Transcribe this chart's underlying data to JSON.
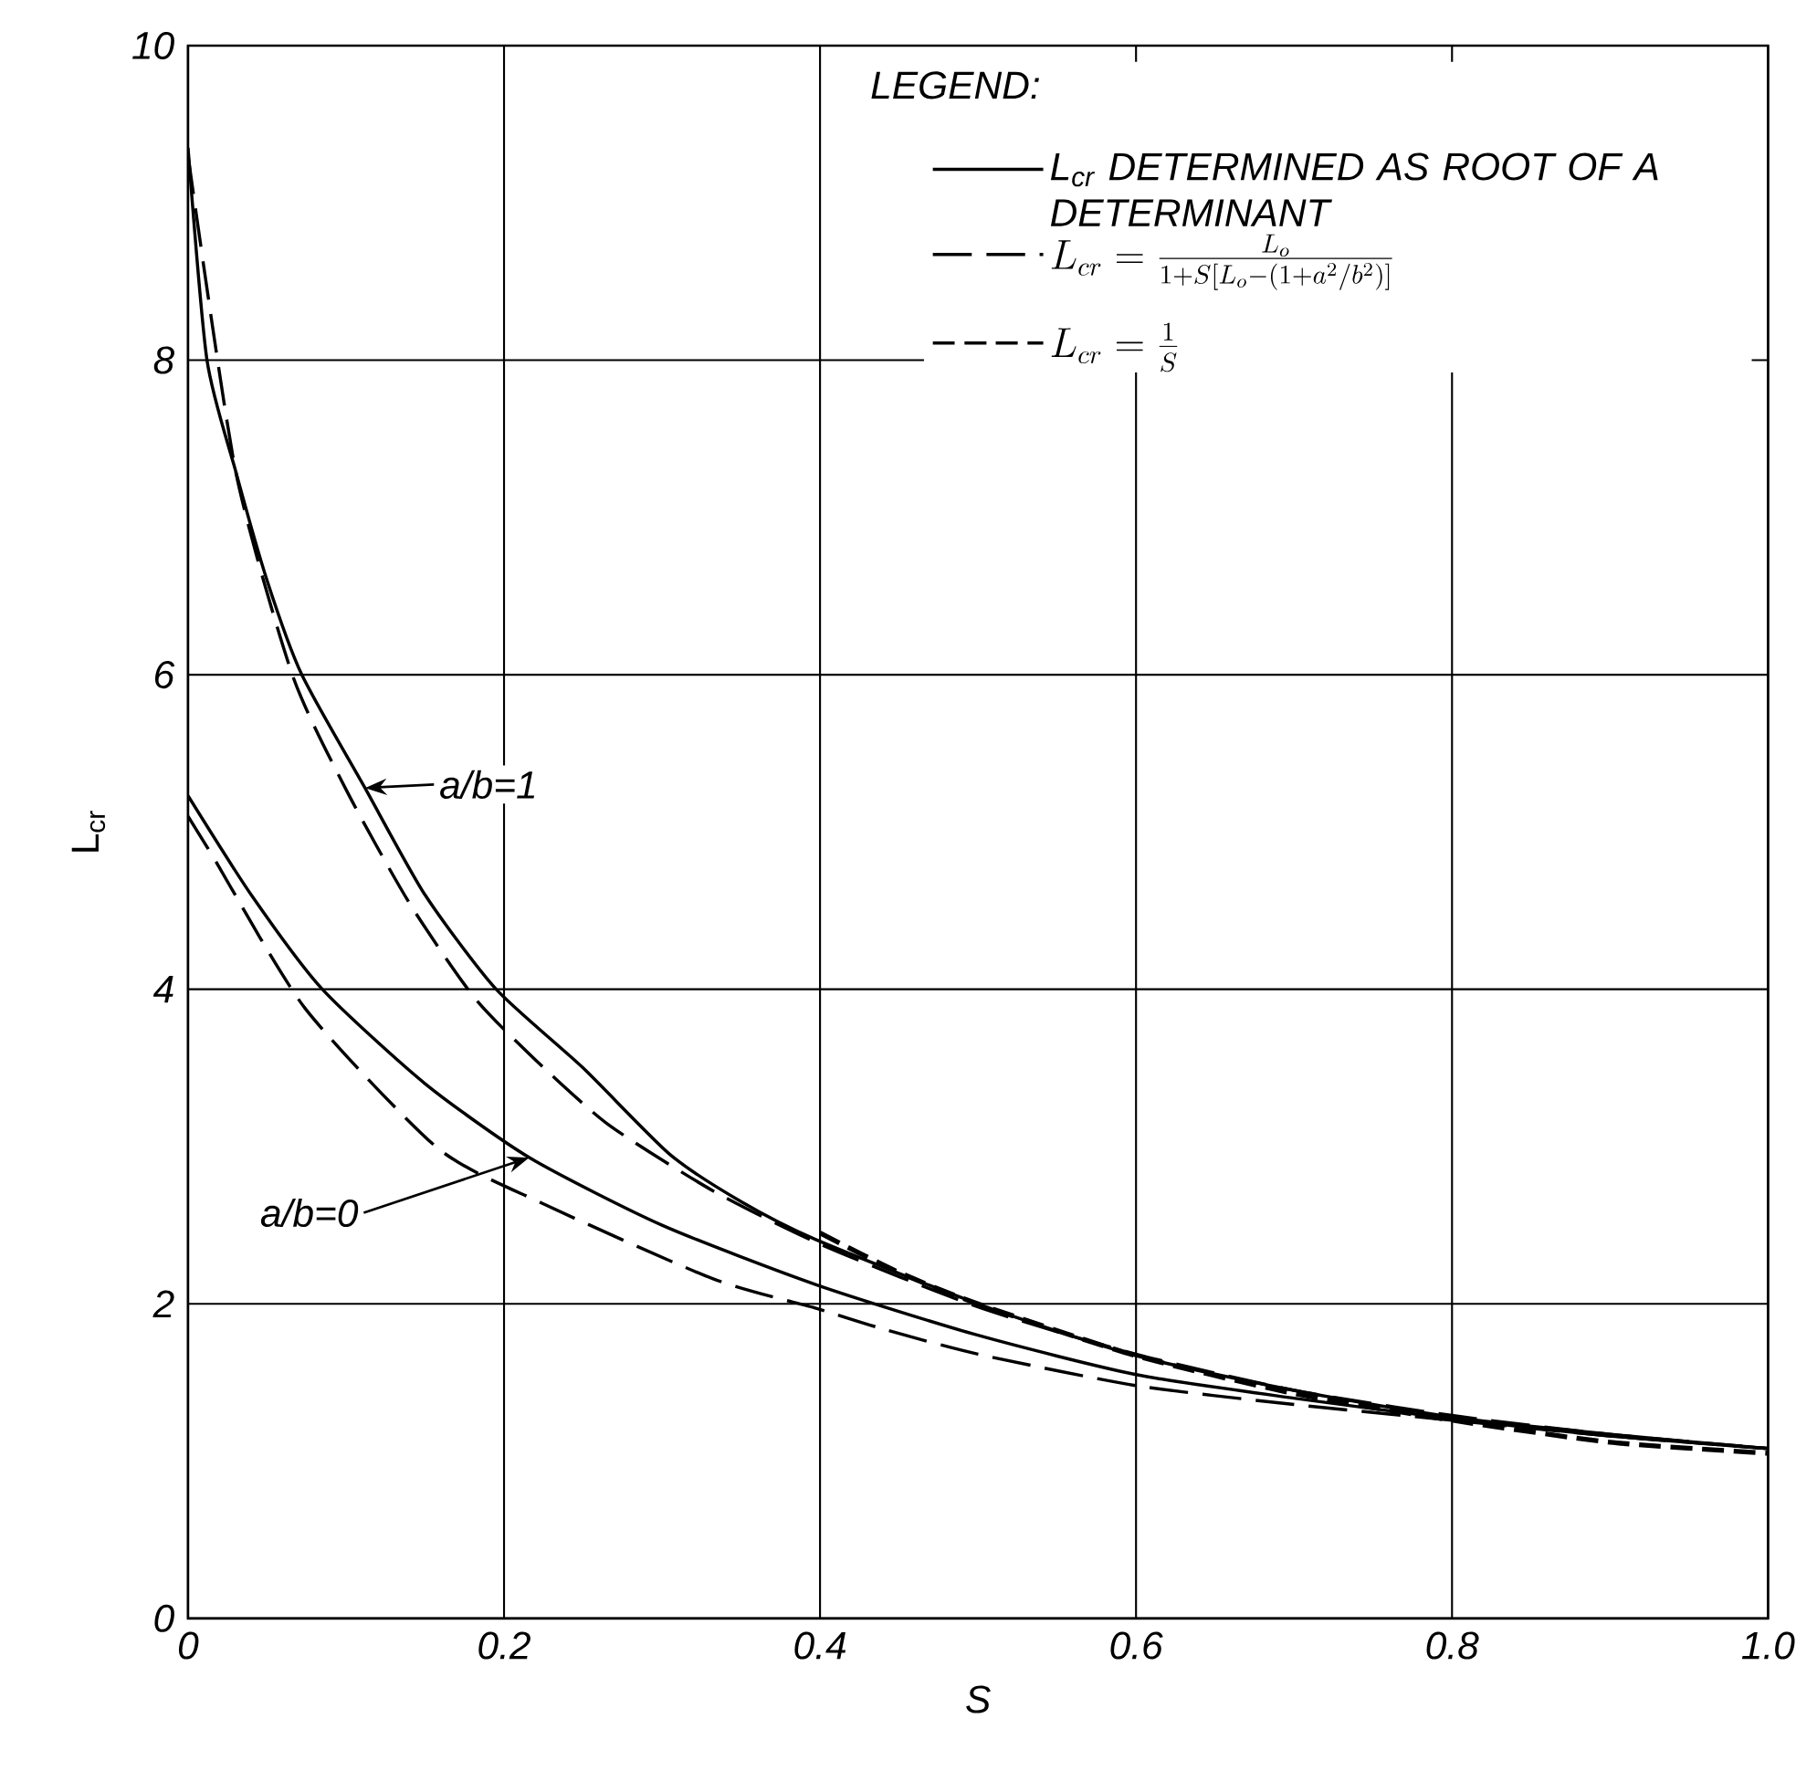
{
  "chart_data": {
    "type": "line",
    "xlabel": "S",
    "ylabel": "L$_{cr}$",
    "legend_title": "LEGEND:",
    "xlim": [
      0,
      1
    ],
    "ylim": [
      0,
      10
    ],
    "xticks": [
      0,
      0.2,
      0.4,
      0.6,
      0.8,
      {
        "value": 1,
        "label": "1.0"
      }
    ],
    "yticks": [
      0,
      2,
      4,
      6,
      8,
      10
    ],
    "grid": true,
    "legend": "top right",
    "marker": "none",
    "annotations": [
      {
        "text": "a/b=1",
        "x": 0.112,
        "y": 5.28
      },
      {
        "text": "a/b=0",
        "x": 0.216,
        "y": 2.93
      }
    ],
    "series": [
      {
        "name": "L$_{cr}$ DETERMINED AS ROOT OF A DETERMINANT",
        "color": "#000000",
        "line_style": "solid",
        "x": [
          0,
          0.012,
          0.03,
          0.05,
          0.072,
          0.112,
          0.15,
          0.195,
          0.25,
          0.305,
          0.35,
          0.397,
          0.5,
          0.6,
          0.7,
          0.8,
          0.9,
          1.0
        ],
        "values": [
          9.35,
          8.0,
          7.3,
          6.6,
          6.0,
          5.28,
          4.6,
          4.0,
          3.5,
          2.95,
          2.65,
          2.41,
          2.0,
          1.67,
          1.45,
          1.28,
          1.17,
          1.08
        ]
      },
      {
        "color": "#000000",
        "line_style": "solid",
        "x": [
          0,
          0.04,
          0.085,
          0.15,
          0.216,
          0.3,
          0.398,
          0.5,
          0.6,
          0.7,
          0.8,
          0.9,
          1.0
        ],
        "values": [
          5.23,
          4.6,
          4.0,
          3.4,
          2.93,
          2.5,
          2.12,
          1.8,
          1.55,
          1.4,
          1.27,
          1.16,
          1.08
        ]
      },
      {
        "name": "L_{cr} = \\frac{L_o}{1 + S\\left[L_o - (1 + a^2/b^2)\\right]}",
        "color": "#000000",
        "line_style": "dashed",
        "x": [
          0,
          0.03,
          0.066,
          0.1,
          0.14,
          0.181,
          0.22,
          0.266,
          0.332,
          0.4,
          0.5,
          0.6,
          0.7,
          0.8,
          0.9,
          1.0
        ],
        "values": [
          9.3,
          7.3,
          6.0,
          5.27,
          4.55,
          3.95,
          3.55,
          3.14,
          2.72,
          2.38,
          1.98,
          1.68,
          1.45,
          1.29,
          1.17,
          1.08
        ]
      },
      {
        "color": "#000000",
        "line_style": "dashed",
        "x": [
          0,
          0.016,
          0.074,
          0.158,
          0.224,
          0.332,
          0.398,
          0.44,
          0.5,
          0.6,
          0.7,
          0.8,
          0.9,
          1.0
        ],
        "values": [
          5.1,
          4.84,
          3.88,
          2.99,
          2.64,
          2.16,
          1.97,
          1.84,
          1.68,
          1.48,
          1.36,
          1.26,
          1.16,
          1.08
        ]
      },
      {
        "name": "L_{cr} = \\frac{1}{S}",
        "color": "#000000",
        "line_style": "dashed",
        "x": [
          0.4,
          0.45,
          0.5,
          0.6,
          0.7,
          0.8,
          0.9,
          1.0
        ],
        "values": [
          2.45,
          2.2,
          2.0,
          1.67,
          1.43,
          1.26,
          1.12,
          1.05
        ]
      }
    ]
  }
}
